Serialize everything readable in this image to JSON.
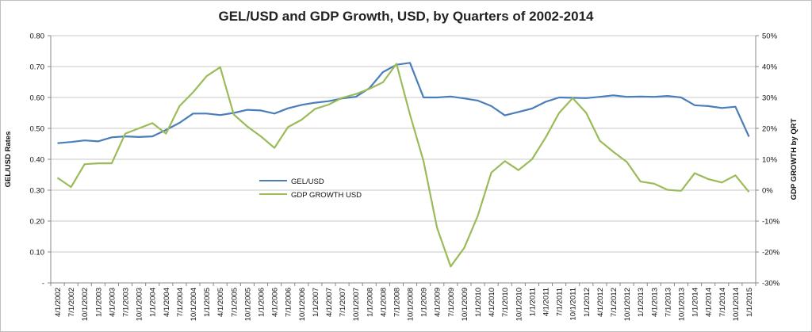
{
  "chart_data": {
    "type": "line",
    "title": "GEL/USD and GDP Growth, USD, by Quarters of 2002-2014",
    "ylabel_left": "GEL/USD Rates",
    "ylabel_right": "GDP GROWTH by QRT",
    "ylim_left": [
      0,
      0.8
    ],
    "ylim_right": [
      -0.3,
      0.5
    ],
    "yticks_left": [
      "-",
      "0.10",
      "0.20",
      "0.30",
      "0.40",
      "0.50",
      "0.60",
      "0.70",
      "0.80"
    ],
    "yticks_right": [
      "-30%",
      "-20%",
      "-10%",
      "0%",
      "10%",
      "20%",
      "30%",
      "40%",
      "50%"
    ],
    "grid": "horizontal",
    "legend_placement": "center-left",
    "categories": [
      "4/1/2002",
      "7/1/2002",
      "10/1/2002",
      "1/1/2003",
      "4/1/2003",
      "7/1/2003",
      "10/1/2003",
      "1/1/2004",
      "4/1/2004",
      "7/1/2004",
      "10/1/2004",
      "1/1/2005",
      "4/1/2005",
      "7/1/2005",
      "10/1/2005",
      "1/1/2006",
      "4/1/2006",
      "7/1/2006",
      "10/1/2006",
      "1/1/2007",
      "4/1/2007",
      "7/1/2007",
      "10/1/2007",
      "1/1/2008",
      "4/1/2008",
      "7/1/2008",
      "10/1/2008",
      "1/1/2009",
      "4/1/2009",
      "7/1/2009",
      "10/1/2009",
      "1/1/2010",
      "4/1/2010",
      "7/1/2010",
      "10/1/2010",
      "1/1/2011",
      "4/1/2011",
      "7/1/2011",
      "10/1/2011",
      "1/1/2012",
      "4/1/2012",
      "7/1/2012",
      "10/1/2012",
      "1/1/2013",
      "4/1/2013",
      "7/1/2013",
      "10/1/2013",
      "1/1/2014",
      "4/1/2014",
      "7/1/2014",
      "10/1/2014",
      "1/1/2015"
    ],
    "series": [
      {
        "name": "GEL/USD",
        "axis": "left",
        "color": "#4a7ebb",
        "values": [
          0.452,
          0.456,
          0.461,
          0.458,
          0.471,
          0.474,
          0.472,
          0.474,
          0.495,
          0.518,
          0.548,
          0.548,
          0.543,
          0.55,
          0.56,
          0.558,
          0.548,
          0.565,
          0.576,
          0.583,
          0.588,
          0.597,
          0.602,
          0.63,
          0.682,
          0.706,
          0.712,
          0.6,
          0.6,
          0.603,
          0.597,
          0.59,
          0.572,
          0.542,
          0.553,
          0.564,
          0.586,
          0.6,
          0.599,
          0.598,
          0.602,
          0.607,
          0.602,
          0.603,
          0.602,
          0.605,
          0.6,
          0.575,
          0.572,
          0.566,
          0.57,
          0.473
        ]
      },
      {
        "name": "GDP GROWTH USD",
        "axis": "right",
        "color": "#9bbb59",
        "values": [
          0.04,
          0.01,
          0.084,
          0.087,
          0.087,
          0.183,
          0.2,
          0.217,
          0.183,
          0.272,
          0.317,
          0.369,
          0.398,
          0.245,
          0.206,
          0.174,
          0.137,
          0.204,
          0.228,
          0.263,
          0.277,
          0.299,
          0.311,
          0.328,
          0.349,
          0.409,
          0.245,
          0.094,
          -0.122,
          -0.247,
          -0.187,
          -0.083,
          0.057,
          0.094,
          0.065,
          0.1,
          0.17,
          0.25,
          0.298,
          0.25,
          0.16,
          0.124,
          0.091,
          0.028,
          0.021,
          0.001,
          -0.002,
          0.055,
          0.036,
          0.025,
          0.048,
          -0.006
        ]
      }
    ]
  }
}
